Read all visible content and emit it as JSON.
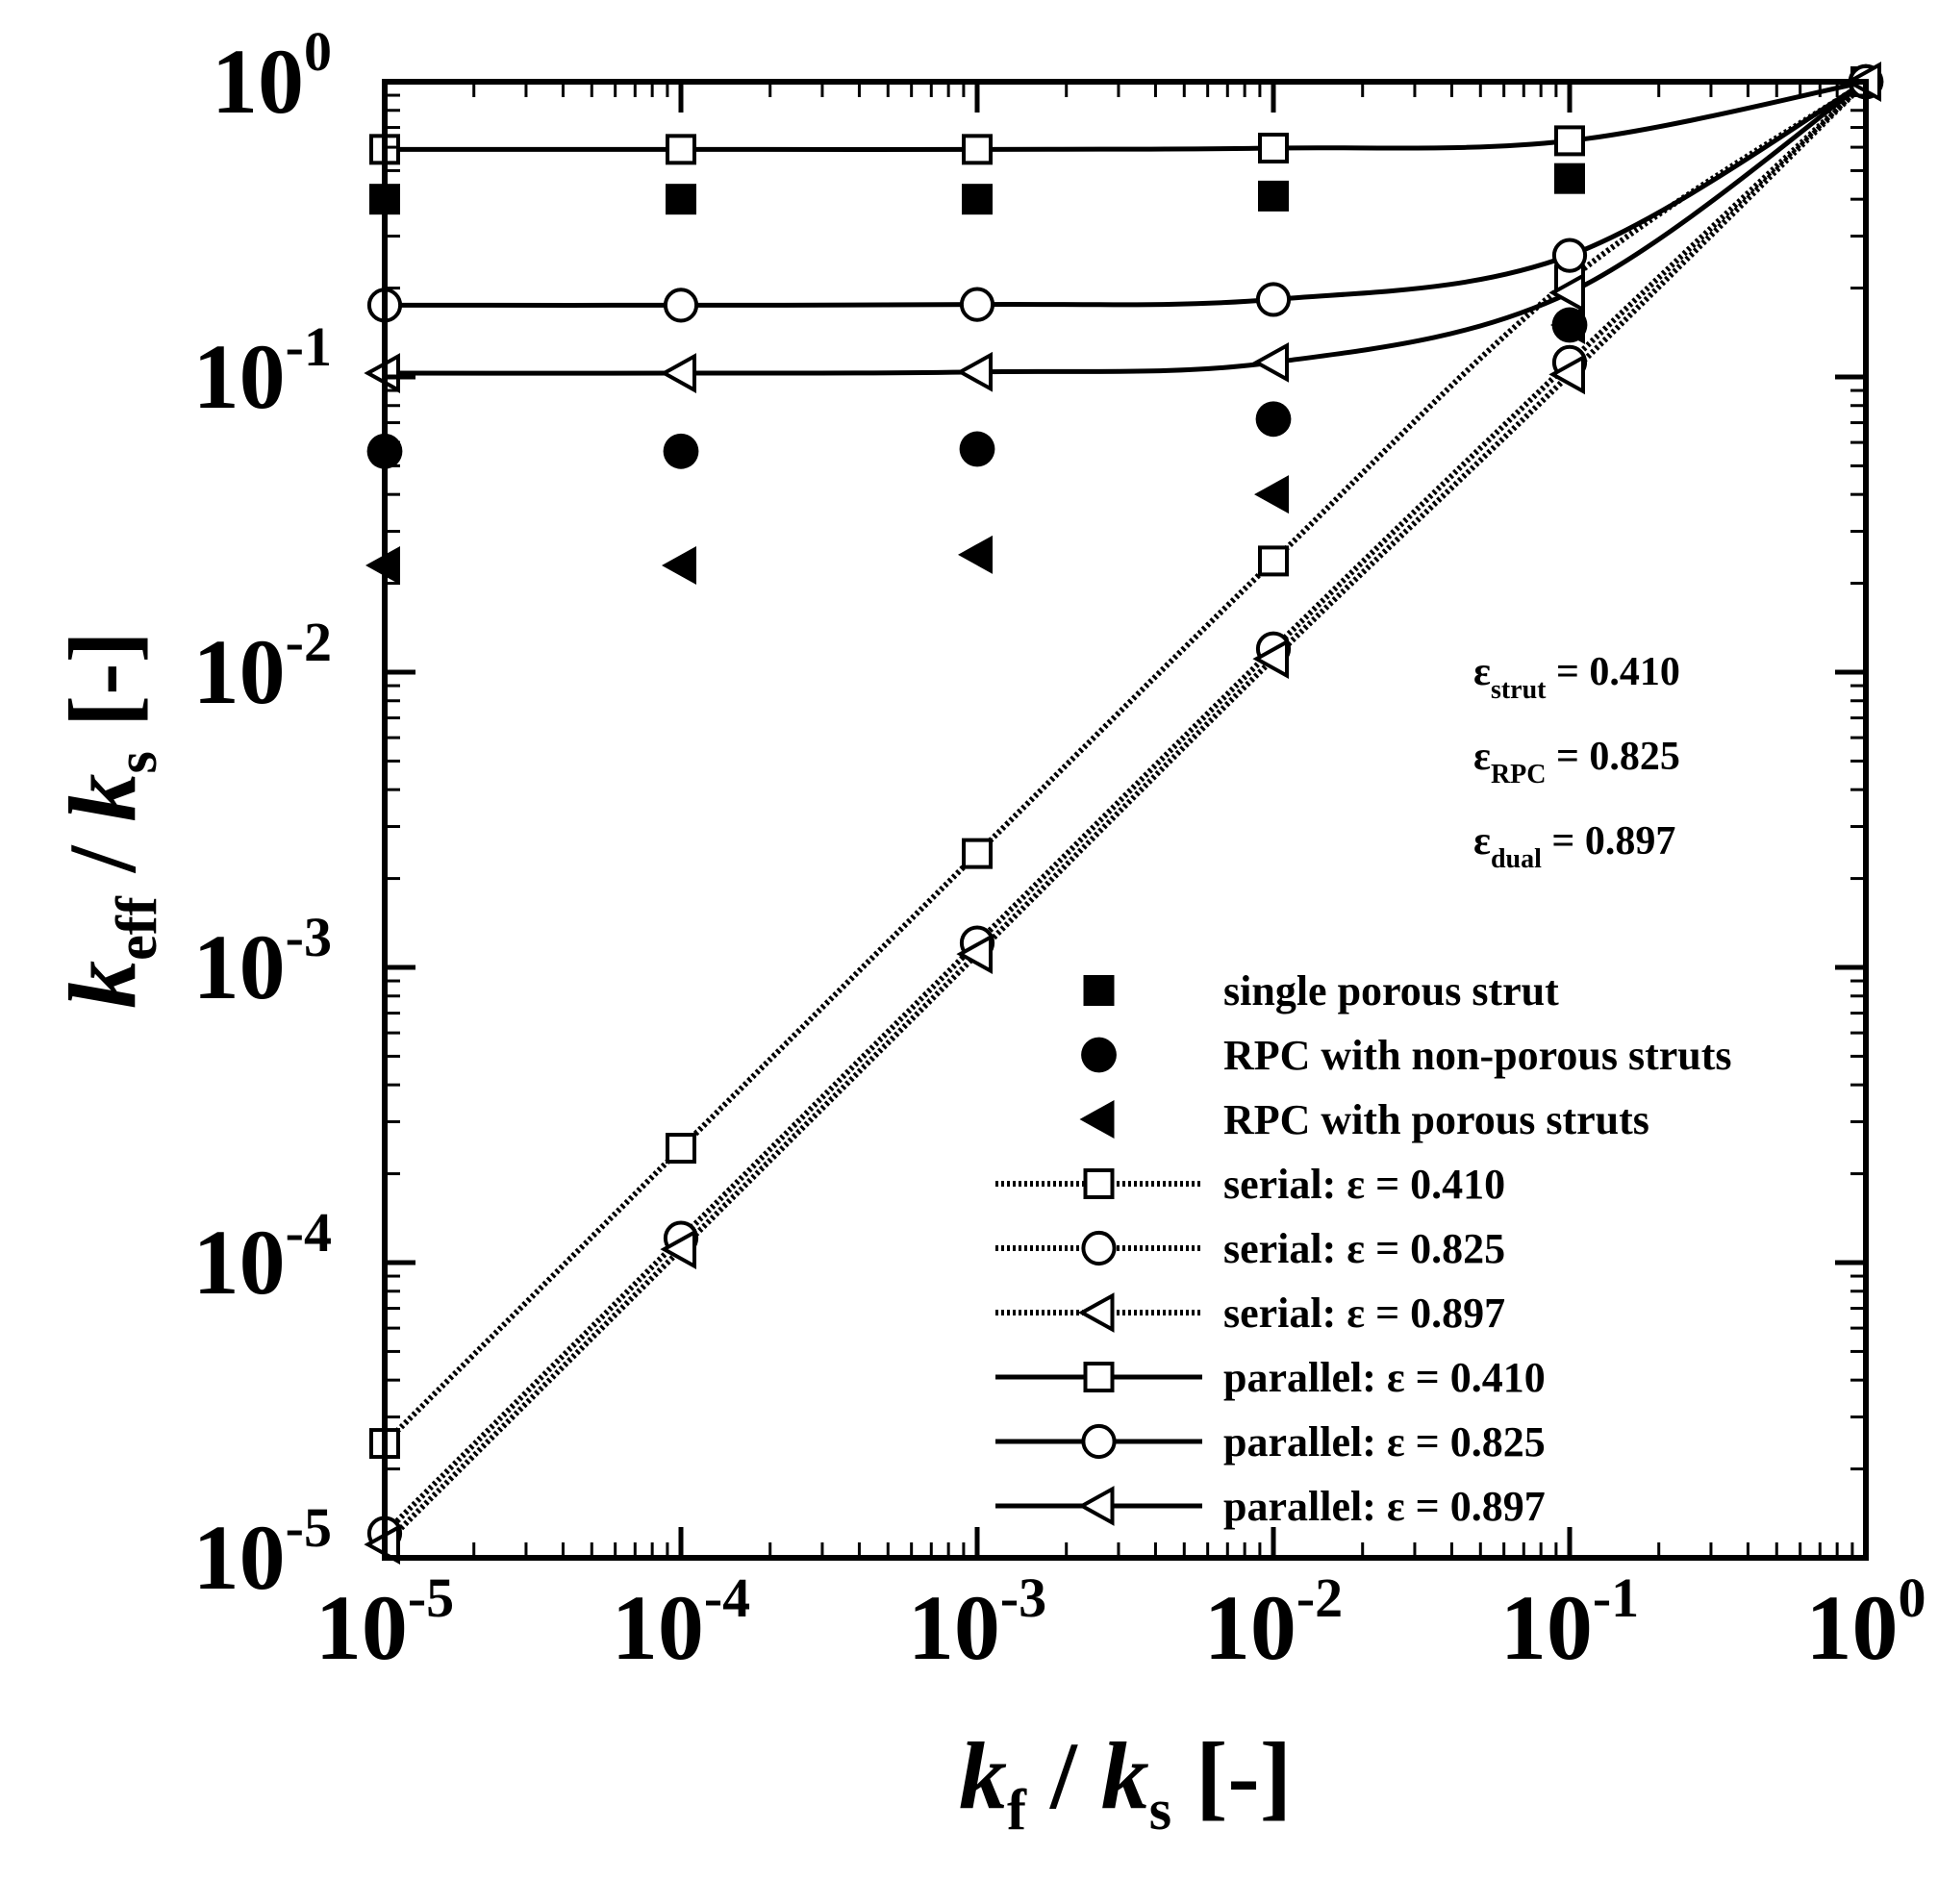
{
  "chart_data": {
    "type": "scatter",
    "xlabel": {
      "var": "k",
      "sub": "f",
      "sep": " / ",
      "var2": "k",
      "sub2": "s",
      "unit": " [-]"
    },
    "ylabel": {
      "var": "k",
      "sub": "eff",
      "sep": " / ",
      "var2": "k",
      "sub2": "s",
      "unit": " [-]"
    },
    "x_scale": "log",
    "y_scale": "log",
    "xlim": [
      1e-05,
      1
    ],
    "ylim": [
      1e-05,
      1
    ],
    "grid": false,
    "legend_position": "lower-right",
    "x_ticks": [
      {
        "value": 1e-05,
        "base": "10",
        "exp": "-5"
      },
      {
        "value": 0.0001,
        "base": "10",
        "exp": "-4"
      },
      {
        "value": 0.001,
        "base": "10",
        "exp": "-3"
      },
      {
        "value": 0.01,
        "base": "10",
        "exp": "-2"
      },
      {
        "value": 0.1,
        "base": "10",
        "exp": "-1"
      },
      {
        "value": 1,
        "base": "10",
        "exp": "0"
      }
    ],
    "y_ticks": [
      {
        "value": 1e-05,
        "base": "10",
        "exp": "-5"
      },
      {
        "value": 0.0001,
        "base": "10",
        "exp": "-4"
      },
      {
        "value": 0.001,
        "base": "10",
        "exp": "-3"
      },
      {
        "value": 0.01,
        "base": "10",
        "exp": "-2"
      },
      {
        "value": 0.1,
        "base": "10",
        "exp": "-1"
      },
      {
        "value": 1,
        "base": "10",
        "exp": "0"
      }
    ],
    "annotations": [
      {
        "symbol": "ε",
        "sub": "strut",
        "text": " = 0.410"
      },
      {
        "symbol": "ε",
        "sub": "RPC",
        "text": " = 0.825"
      },
      {
        "symbol": "ε",
        "sub": "dual",
        "text": " = 0.897"
      }
    ],
    "series": [
      {
        "name": "single porous strut",
        "marker": "square",
        "filled": true,
        "line": "none",
        "x": [
          1e-05,
          0.0001,
          0.001,
          0.01,
          0.1,
          1
        ],
        "y": [
          0.4,
          0.4,
          0.4,
          0.41,
          0.47,
          1.0
        ]
      },
      {
        "name": "RPC with non-porous struts",
        "marker": "circle",
        "filled": true,
        "line": "none",
        "x": [
          1e-05,
          0.0001,
          0.001,
          0.01,
          0.1,
          1
        ],
        "y": [
          0.056,
          0.056,
          0.057,
          0.072,
          0.15,
          1.0
        ]
      },
      {
        "name": "RPC with porous struts",
        "marker": "triangle-left",
        "filled": true,
        "line": "none",
        "x": [
          1e-05,
          0.0001,
          0.001,
          0.01,
          0.1,
          1
        ],
        "y": [
          0.023,
          0.023,
          0.025,
          0.04,
          0.15,
          1.0
        ]
      },
      {
        "name": "serial: ε = 0.410",
        "marker": "square",
        "filled": false,
        "line": "dotted",
        "x": [
          1e-05,
          0.0001,
          0.001,
          0.01,
          0.1,
          1
        ],
        "y": [
          2.44e-05,
          0.000244,
          0.00243,
          0.0238,
          0.213,
          1.0
        ]
      },
      {
        "name": "serial: ε = 0.825",
        "marker": "circle",
        "filled": false,
        "line": "dotted",
        "x": [
          1e-05,
          0.0001,
          0.001,
          0.01,
          0.1,
          1
        ],
        "y": [
          1.21e-05,
          0.000121,
          0.00121,
          0.012,
          0.112,
          1.0
        ]
      },
      {
        "name": "serial: ε = 0.897",
        "marker": "triangle-left",
        "filled": false,
        "line": "dotted",
        "x": [
          1e-05,
          0.0001,
          0.001,
          0.01,
          0.1,
          1
        ],
        "y": [
          1.11e-05,
          0.000111,
          0.00111,
          0.0111,
          0.102,
          1.0
        ]
      },
      {
        "name": "parallel: ε = 0.410",
        "marker": "square",
        "filled": false,
        "line": "solid",
        "x": [
          1e-05,
          0.0001,
          0.001,
          0.01,
          0.1,
          1
        ],
        "y": [
          0.59,
          0.59,
          0.59,
          0.596,
          0.631,
          1.0
        ]
      },
      {
        "name": "parallel: ε = 0.825",
        "marker": "circle",
        "filled": false,
        "line": "solid",
        "x": [
          1e-05,
          0.0001,
          0.001,
          0.01,
          0.1,
          1
        ],
        "y": [
          0.175,
          0.175,
          0.176,
          0.183,
          0.258,
          1.0
        ]
      },
      {
        "name": "parallel: ε = 0.897",
        "marker": "triangle-left",
        "filled": false,
        "line": "solid",
        "x": [
          1e-05,
          0.0001,
          0.001,
          0.01,
          0.1,
          1
        ],
        "y": [
          0.103,
          0.103,
          0.104,
          0.112,
          0.193,
          1.0
        ]
      }
    ]
  }
}
